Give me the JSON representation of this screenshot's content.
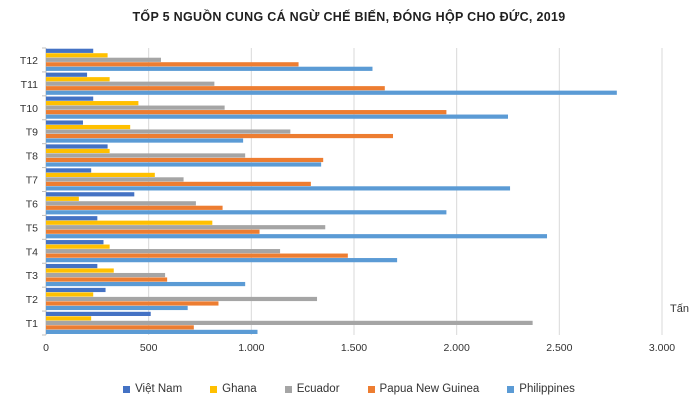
{
  "chart_data": {
    "type": "bar",
    "orientation": "horizontal",
    "title": "TỐP 5 NGUỒN CUNG CÁ NGỪ CHẾ BIẾN, ĐÓNG HỘP CHO ĐỨC, 2019",
    "unit_label": "Tấn",
    "categories": [
      "T1",
      "T2",
      "T3",
      "T4",
      "T5",
      "T6",
      "T7",
      "T8",
      "T9",
      "T10",
      "T11",
      "T12"
    ],
    "xlim": [
      0,
      3000
    ],
    "x_ticks": [
      0,
      500,
      1000,
      1500,
      2000,
      2500,
      3000
    ],
    "x_tick_labels": [
      "0",
      "500",
      "1.000",
      "1.500",
      "2.000",
      "2.500",
      "3.000"
    ],
    "grid": true,
    "legend_position": "bottom",
    "series": [
      {
        "name": "Việt Nam",
        "color": "#4472c4",
        "values": [
          510,
          290,
          250,
          280,
          250,
          430,
          220,
          300,
          180,
          230,
          200,
          230
        ]
      },
      {
        "name": "Ghana",
        "color": "#ffc000",
        "values": [
          220,
          230,
          330,
          310,
          810,
          160,
          530,
          310,
          410,
          450,
          310,
          300
        ]
      },
      {
        "name": "Ecuador",
        "color": "#a5a5a5",
        "values": [
          2370,
          1320,
          580,
          1140,
          1360,
          730,
          670,
          970,
          1190,
          870,
          820,
          560
        ]
      },
      {
        "name": "Papua New Guinea",
        "color": "#ed7d31",
        "values": [
          720,
          840,
          590,
          1470,
          1040,
          860,
          1290,
          1350,
          1690,
          1950,
          1650,
          1230
        ]
      },
      {
        "name": "Philippines",
        "color": "#5b9bd5",
        "values": [
          1030,
          690,
          970,
          1710,
          2440,
          1950,
          2260,
          1340,
          960,
          2250,
          2780,
          1590
        ]
      }
    ]
  }
}
